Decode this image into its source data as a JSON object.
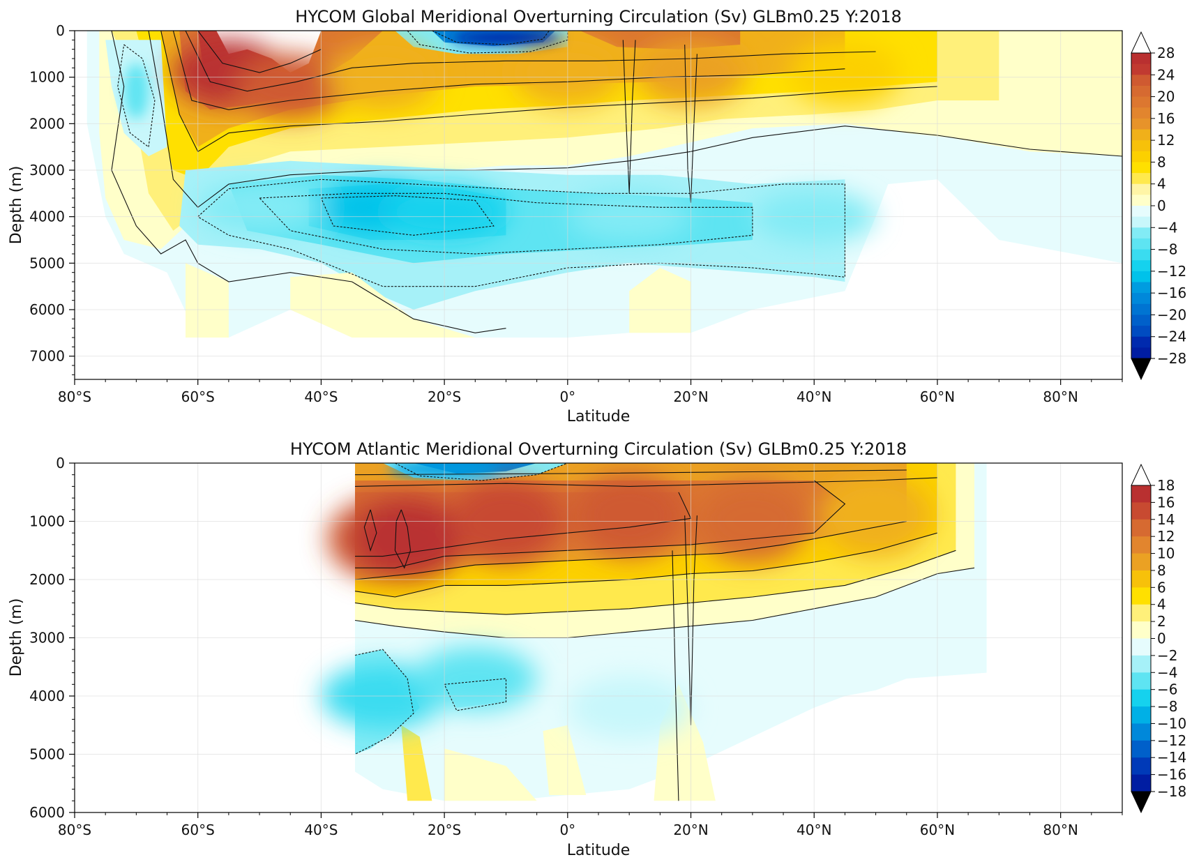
{
  "chart_data": [
    {
      "type": "heatmap",
      "title": "HYCOM Global Meridional Overturning Circulation (Sv) GLBm0.25 Y:2018",
      "xlabel": "Latitude",
      "ylabel": "Depth (m)",
      "xlim": [
        -80,
        90
      ],
      "ylim": [
        7500,
        0
      ],
      "x_ticks": [
        "80°S",
        "60°S",
        "40°S",
        "20°S",
        "0°",
        "20°N",
        "40°N",
        "60°N",
        "80°N"
      ],
      "x_tick_values": [
        -80,
        -60,
        -40,
        -20,
        0,
        20,
        40,
        60,
        80
      ],
      "y_ticks": [
        "0",
        "1000",
        "2000",
        "3000",
        "4000",
        "5000",
        "6000",
        "7000"
      ],
      "y_tick_values": [
        0,
        1000,
        2000,
        3000,
        4000,
        5000,
        6000,
        7000
      ],
      "colorbar_ticks": [
        "28",
        "24",
        "20",
        "16",
        "12",
        "8",
        "4",
        "0",
        "−4",
        "−8",
        "−12",
        "−16",
        "−20",
        "−24",
        "−28"
      ],
      "colorbar_range": [
        -28,
        28
      ],
      "colorbar_step": 2,
      "grid": true,
      "features": {
        "south_limit": -78,
        "north_limit": 90,
        "upper_cell": [
          {
            "lat": -55,
            "depth": 900,
            "value": 28
          },
          {
            "lat": -45,
            "depth": 1200,
            "value": 22
          },
          {
            "lat": -30,
            "depth": 1000,
            "value": 12
          },
          {
            "lat": 0,
            "depth": 900,
            "value": 13
          },
          {
            "lat": 20,
            "depth": 900,
            "value": 14
          },
          {
            "lat": 45,
            "depth": 900,
            "value": 9
          }
        ],
        "lower_cell": [
          {
            "lat": -50,
            "depth": 3800,
            "value": -6
          },
          {
            "lat": -30,
            "depth": 3800,
            "value": -13
          },
          {
            "lat": -20,
            "depth": 3900,
            "value": -10
          },
          {
            "lat": 10,
            "depth": 4000,
            "value": -6
          },
          {
            "lat": 40,
            "depth": 4000,
            "value": -5
          }
        ],
        "surface_cell": {
          "lat": -10,
          "depth": 150,
          "value": -28
        }
      }
    },
    {
      "type": "heatmap",
      "title": "HYCOM Atlantic Meridional Overturning Circulation (Sv) GLBm0.25 Y:2018",
      "xlabel": "Latitude",
      "ylabel": "Depth (m)",
      "xlim": [
        -80,
        90
      ],
      "ylim": [
        6000,
        0
      ],
      "x_ticks": [
        "80°S",
        "60°S",
        "40°S",
        "20°S",
        "0°",
        "20°N",
        "40°N",
        "60°N",
        "80°N"
      ],
      "x_tick_values": [
        -80,
        -60,
        -40,
        -20,
        0,
        20,
        40,
        60,
        80
      ],
      "y_ticks": [
        "0",
        "1000",
        "2000",
        "3000",
        "4000",
        "5000",
        "6000"
      ],
      "y_tick_values": [
        0,
        1000,
        2000,
        3000,
        4000,
        5000,
        6000
      ],
      "colorbar_ticks": [
        "18",
        "16",
        "14",
        "12",
        "10",
        "8",
        "6",
        "4",
        "2",
        "0",
        "−2",
        "−4",
        "−6",
        "−8",
        "−10",
        "−12",
        "−14",
        "−16",
        "−18"
      ],
      "colorbar_range": [
        -18,
        18
      ],
      "colorbar_step": 2,
      "grid": true,
      "features": {
        "south_limit": -34.5,
        "north_limit": 68,
        "upper_cell": [
          {
            "lat": -30,
            "depth": 1300,
            "value": 14
          },
          {
            "lat": -26,
            "depth": 1300,
            "value": 17
          },
          {
            "lat": -10,
            "depth": 1000,
            "value": 15
          },
          {
            "lat": 10,
            "depth": 900,
            "value": 14
          },
          {
            "lat": 30,
            "depth": 1000,
            "value": 13
          },
          {
            "lat": 50,
            "depth": 900,
            "value": 8
          }
        ],
        "lower_cell": [
          {
            "lat": -30,
            "depth": 4000,
            "value": -6
          },
          {
            "lat": -15,
            "depth": 3700,
            "value": -5
          },
          {
            "lat": 10,
            "depth": 4200,
            "value": -2
          }
        ],
        "surface_cell": {
          "lat": -20,
          "depth": 100,
          "value": -10
        }
      }
    }
  ]
}
